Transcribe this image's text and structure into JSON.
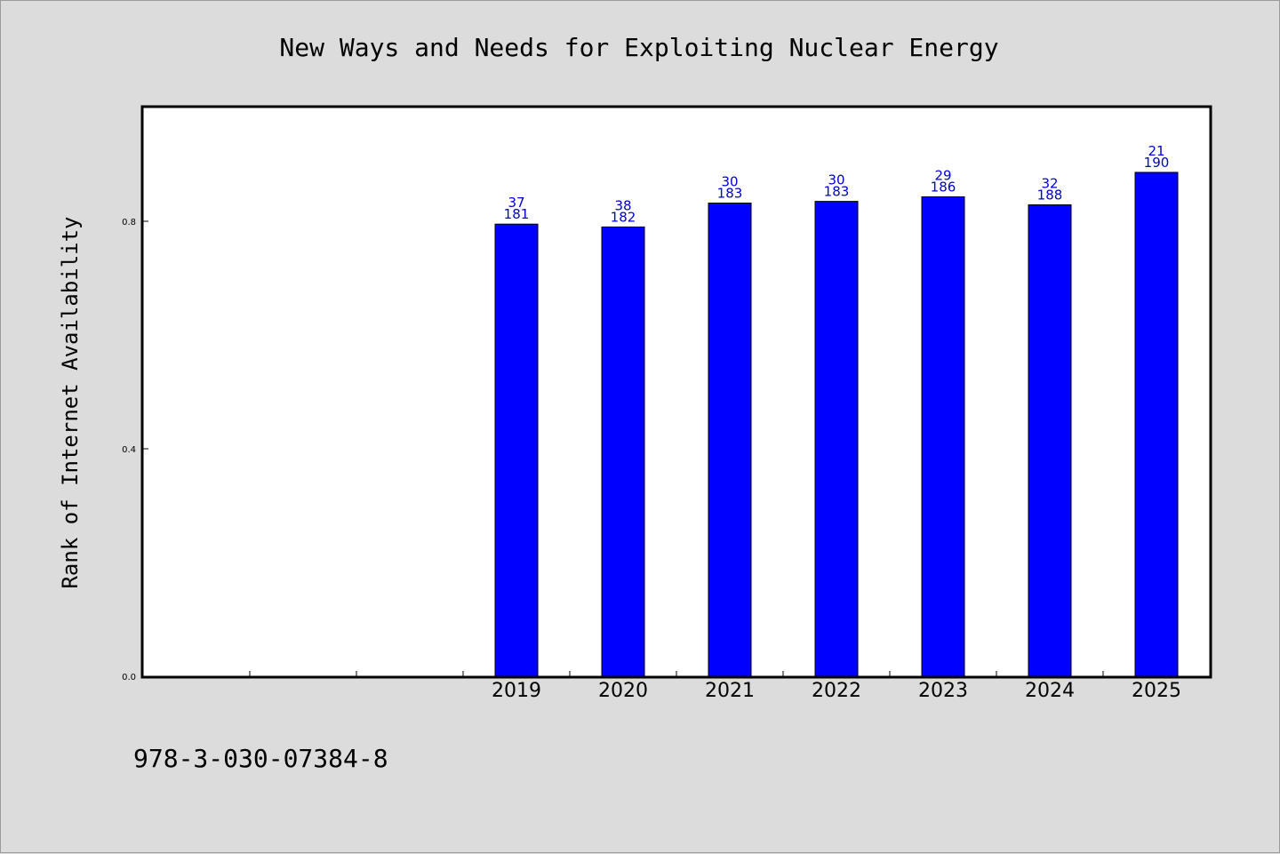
{
  "chart_data": {
    "type": "bar",
    "title": "New Ways and Needs for Exploiting Nuclear Energy",
    "ylabel": "Rank of Internet Availability",
    "xlabel": "",
    "categories": [
      "",
      "",
      "",
      "2019",
      "2020",
      "2021",
      "2022",
      "2023",
      "2024",
      "2025"
    ],
    "values": [
      null,
      null,
      null,
      0.795,
      0.79,
      0.832,
      0.835,
      0.843,
      0.829,
      0.886
    ],
    "label_top": [
      "",
      "",
      "",
      "37",
      "38",
      "30",
      "30",
      "29",
      "32",
      "21"
    ],
    "label_bottom": [
      "",
      "",
      "",
      "181",
      "182",
      "183",
      "183",
      "186",
      "188",
      "190"
    ],
    "ylim": [
      0,
      0.8
    ],
    "yticks": [
      0.0,
      0.4,
      0.8
    ],
    "ytick_labels": [
      "0.0",
      "0.4",
      "0.8"
    ],
    "bar_color": "#0000ff",
    "label_color": "#0000cc",
    "grid": false,
    "legend": "none"
  },
  "footer": {
    "isbn": "978-3-030-07384-8"
  },
  "colors": {
    "background": "#dcdcdc",
    "plot_background": "#ffffff"
  }
}
